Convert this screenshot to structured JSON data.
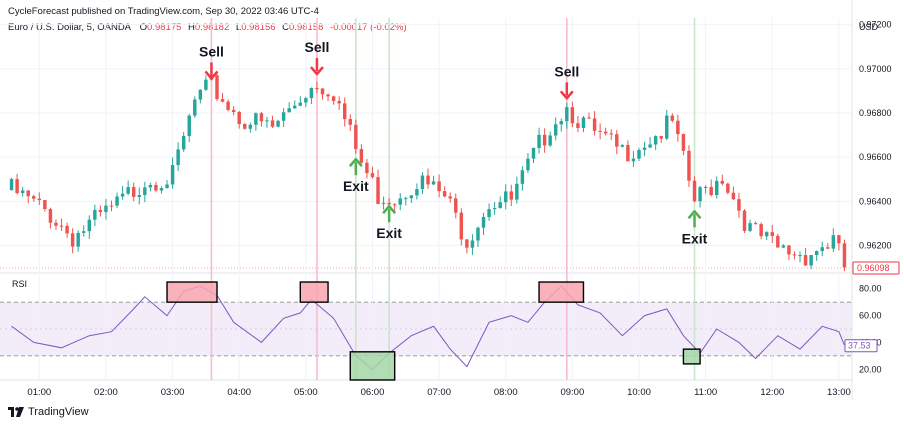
{
  "header": {
    "publisher": "CycleForecast published on TradingView.com, Sep 30, 2022 03:46 UTC-4",
    "symbol": "Euro / U.S. Dollar, 5, OANDA",
    "ohlc": [
      {
        "k": "O",
        "v": "0.98175"
      },
      {
        "k": "H",
        "v": "0.98182"
      },
      {
        "k": "L",
        "v": "0.98156"
      },
      {
        "k": "C",
        "v": "0.98158"
      }
    ],
    "change": "-0.00017 (-0.02%)"
  },
  "price_axis": {
    "currency": "USD",
    "ticks": [
      "0.97200",
      "0.97000",
      "0.96800",
      "0.96600",
      "0.96400",
      "0.96200"
    ],
    "last_price": "0.96098"
  },
  "rsi_panel": {
    "label": "RSI",
    "ticks": [
      "80.00",
      "60.00",
      "40.00",
      "20.00"
    ],
    "current": "37.53"
  },
  "time_axis": {
    "ticks": [
      "01:00",
      "02:00",
      "03:00",
      "04:00",
      "05:00",
      "06:00",
      "07:00",
      "08:00",
      "09:00",
      "10:00",
      "11:00",
      "12:00",
      "13:00"
    ]
  },
  "annotations": [
    {
      "text": "Sell",
      "type": "sell"
    },
    {
      "text": "Sell",
      "type": "sell"
    },
    {
      "text": "Exit",
      "type": "exit"
    },
    {
      "text": "Exit",
      "type": "exit"
    },
    {
      "text": "Sell",
      "type": "sell"
    },
    {
      "text": "Exit",
      "type": "exit"
    }
  ],
  "footer": {
    "brand": "TradingView"
  },
  "colors": {
    "up": "#26a69a",
    "down": "#ef5350",
    "rsi": "#7e57c2",
    "sell": "#f23645",
    "exit": "#4caf50"
  },
  "chart_data": {
    "type": "candlestick",
    "title": "Euro / U.S. Dollar, 5, OANDA",
    "x_range": [
      "00:30",
      "13:10"
    ],
    "ylim": [
      0.9608,
      0.9723
    ],
    "rsi_lim": [
      12,
      88
    ],
    "rsi_levels": [
      70,
      30
    ],
    "anchors": [
      {
        "t": "00:35",
        "p": 0.9645
      },
      {
        "t": "01:10",
        "p": 0.9634
      },
      {
        "t": "01:30",
        "p": 0.9624
      },
      {
        "t": "02:10",
        "p": 0.9638
      },
      {
        "t": "02:35",
        "p": 0.965
      },
      {
        "t": "03:00",
        "p": 0.9651
      },
      {
        "t": "03:20",
        "p": 0.9685
      },
      {
        "t": "03:35",
        "p": 0.9692
      },
      {
        "t": "04:00",
        "p": 0.9678
      },
      {
        "t": "04:30",
        "p": 0.9673
      },
      {
        "t": "05:00",
        "p": 0.969
      },
      {
        "t": "05:10",
        "p": 0.9694
      },
      {
        "t": "05:25",
        "p": 0.969
      },
      {
        "t": "05:50",
        "p": 0.9657
      },
      {
        "t": "06:05",
        "p": 0.9643
      },
      {
        "t": "06:20",
        "p": 0.9642
      },
      {
        "t": "06:40",
        "p": 0.965
      },
      {
        "t": "07:05",
        "p": 0.9642
      },
      {
        "t": "07:25",
        "p": 0.9623
      },
      {
        "t": "07:45",
        "p": 0.964
      },
      {
        "t": "08:05",
        "p": 0.964
      },
      {
        "t": "08:40",
        "p": 0.9675
      },
      {
        "t": "08:55",
        "p": 0.9683
      },
      {
        "t": "09:20",
        "p": 0.967
      },
      {
        "t": "09:45",
        "p": 0.9662
      },
      {
        "t": "10:15",
        "p": 0.967
      },
      {
        "t": "10:30",
        "p": 0.9675
      },
      {
        "t": "10:50",
        "p": 0.964
      },
      {
        "t": "11:15",
        "p": 0.9652
      },
      {
        "t": "11:40",
        "p": 0.9627
      },
      {
        "t": "12:05",
        "p": 0.9618
      },
      {
        "t": "12:30",
        "p": 0.9616
      },
      {
        "t": "12:55",
        "p": 0.9622
      },
      {
        "t": "13:05",
        "p": 0.961
      }
    ],
    "rsi_series": [
      {
        "t": "00:35",
        "v": 52
      },
      {
        "t": "00:55",
        "v": 40
      },
      {
        "t": "01:20",
        "v": 36
      },
      {
        "t": "01:45",
        "v": 45
      },
      {
        "t": "02:05",
        "v": 48
      },
      {
        "t": "02:25",
        "v": 65
      },
      {
        "t": "02:35",
        "v": 74
      },
      {
        "t": "02:55",
        "v": 60
      },
      {
        "t": "03:10",
        "v": 78
      },
      {
        "t": "03:25",
        "v": 82
      },
      {
        "t": "03:40",
        "v": 75
      },
      {
        "t": "03:55",
        "v": 55
      },
      {
        "t": "04:20",
        "v": 40
      },
      {
        "t": "04:40",
        "v": 58
      },
      {
        "t": "04:55",
        "v": 62
      },
      {
        "t": "05:05",
        "v": 72
      },
      {
        "t": "05:25",
        "v": 58
      },
      {
        "t": "05:45",
        "v": 30
      },
      {
        "t": "06:00",
        "v": 20
      },
      {
        "t": "06:15",
        "v": 32
      },
      {
        "t": "06:35",
        "v": 45
      },
      {
        "t": "06:55",
        "v": 52
      },
      {
        "t": "07:10",
        "v": 35
      },
      {
        "t": "07:25",
        "v": 22
      },
      {
        "t": "07:45",
        "v": 55
      },
      {
        "t": "08:05",
        "v": 60
      },
      {
        "t": "08:20",
        "v": 55
      },
      {
        "t": "08:35",
        "v": 70
      },
      {
        "t": "08:50",
        "v": 82
      },
      {
        "t": "09:05",
        "v": 68
      },
      {
        "t": "09:25",
        "v": 62
      },
      {
        "t": "09:45",
        "v": 45
      },
      {
        "t": "10:05",
        "v": 60
      },
      {
        "t": "10:25",
        "v": 65
      },
      {
        "t": "10:40",
        "v": 45
      },
      {
        "t": "10:55",
        "v": 32
      },
      {
        "t": "11:10",
        "v": 50
      },
      {
        "t": "11:30",
        "v": 40
      },
      {
        "t": "11:45",
        "v": 28
      },
      {
        "t": "12:05",
        "v": 45
      },
      {
        "t": "12:25",
        "v": 35
      },
      {
        "t": "12:45",
        "v": 52
      },
      {
        "t": "13:00",
        "v": 48
      },
      {
        "t": "13:05",
        "v": 38
      }
    ],
    "signals": [
      {
        "t": "03:35",
        "kind": "sell"
      },
      {
        "t": "05:10",
        "kind": "sell"
      },
      {
        "t": "05:45",
        "kind": "exit"
      },
      {
        "t": "06:15",
        "kind": "exit"
      },
      {
        "t": "08:55",
        "kind": "sell"
      },
      {
        "t": "10:50",
        "kind": "exit"
      }
    ],
    "rsi_zones": [
      {
        "t0": "02:55",
        "t1": "03:40",
        "kind": "overbought"
      },
      {
        "t0": "04:55",
        "t1": "05:20",
        "kind": "overbought"
      },
      {
        "t0": "05:40",
        "t1": "06:20",
        "kind": "oversold"
      },
      {
        "t0": "08:30",
        "t1": "09:10",
        "kind": "overbought"
      },
      {
        "t0": "10:40",
        "t1": "10:55",
        "kind": "oversold"
      }
    ]
  }
}
